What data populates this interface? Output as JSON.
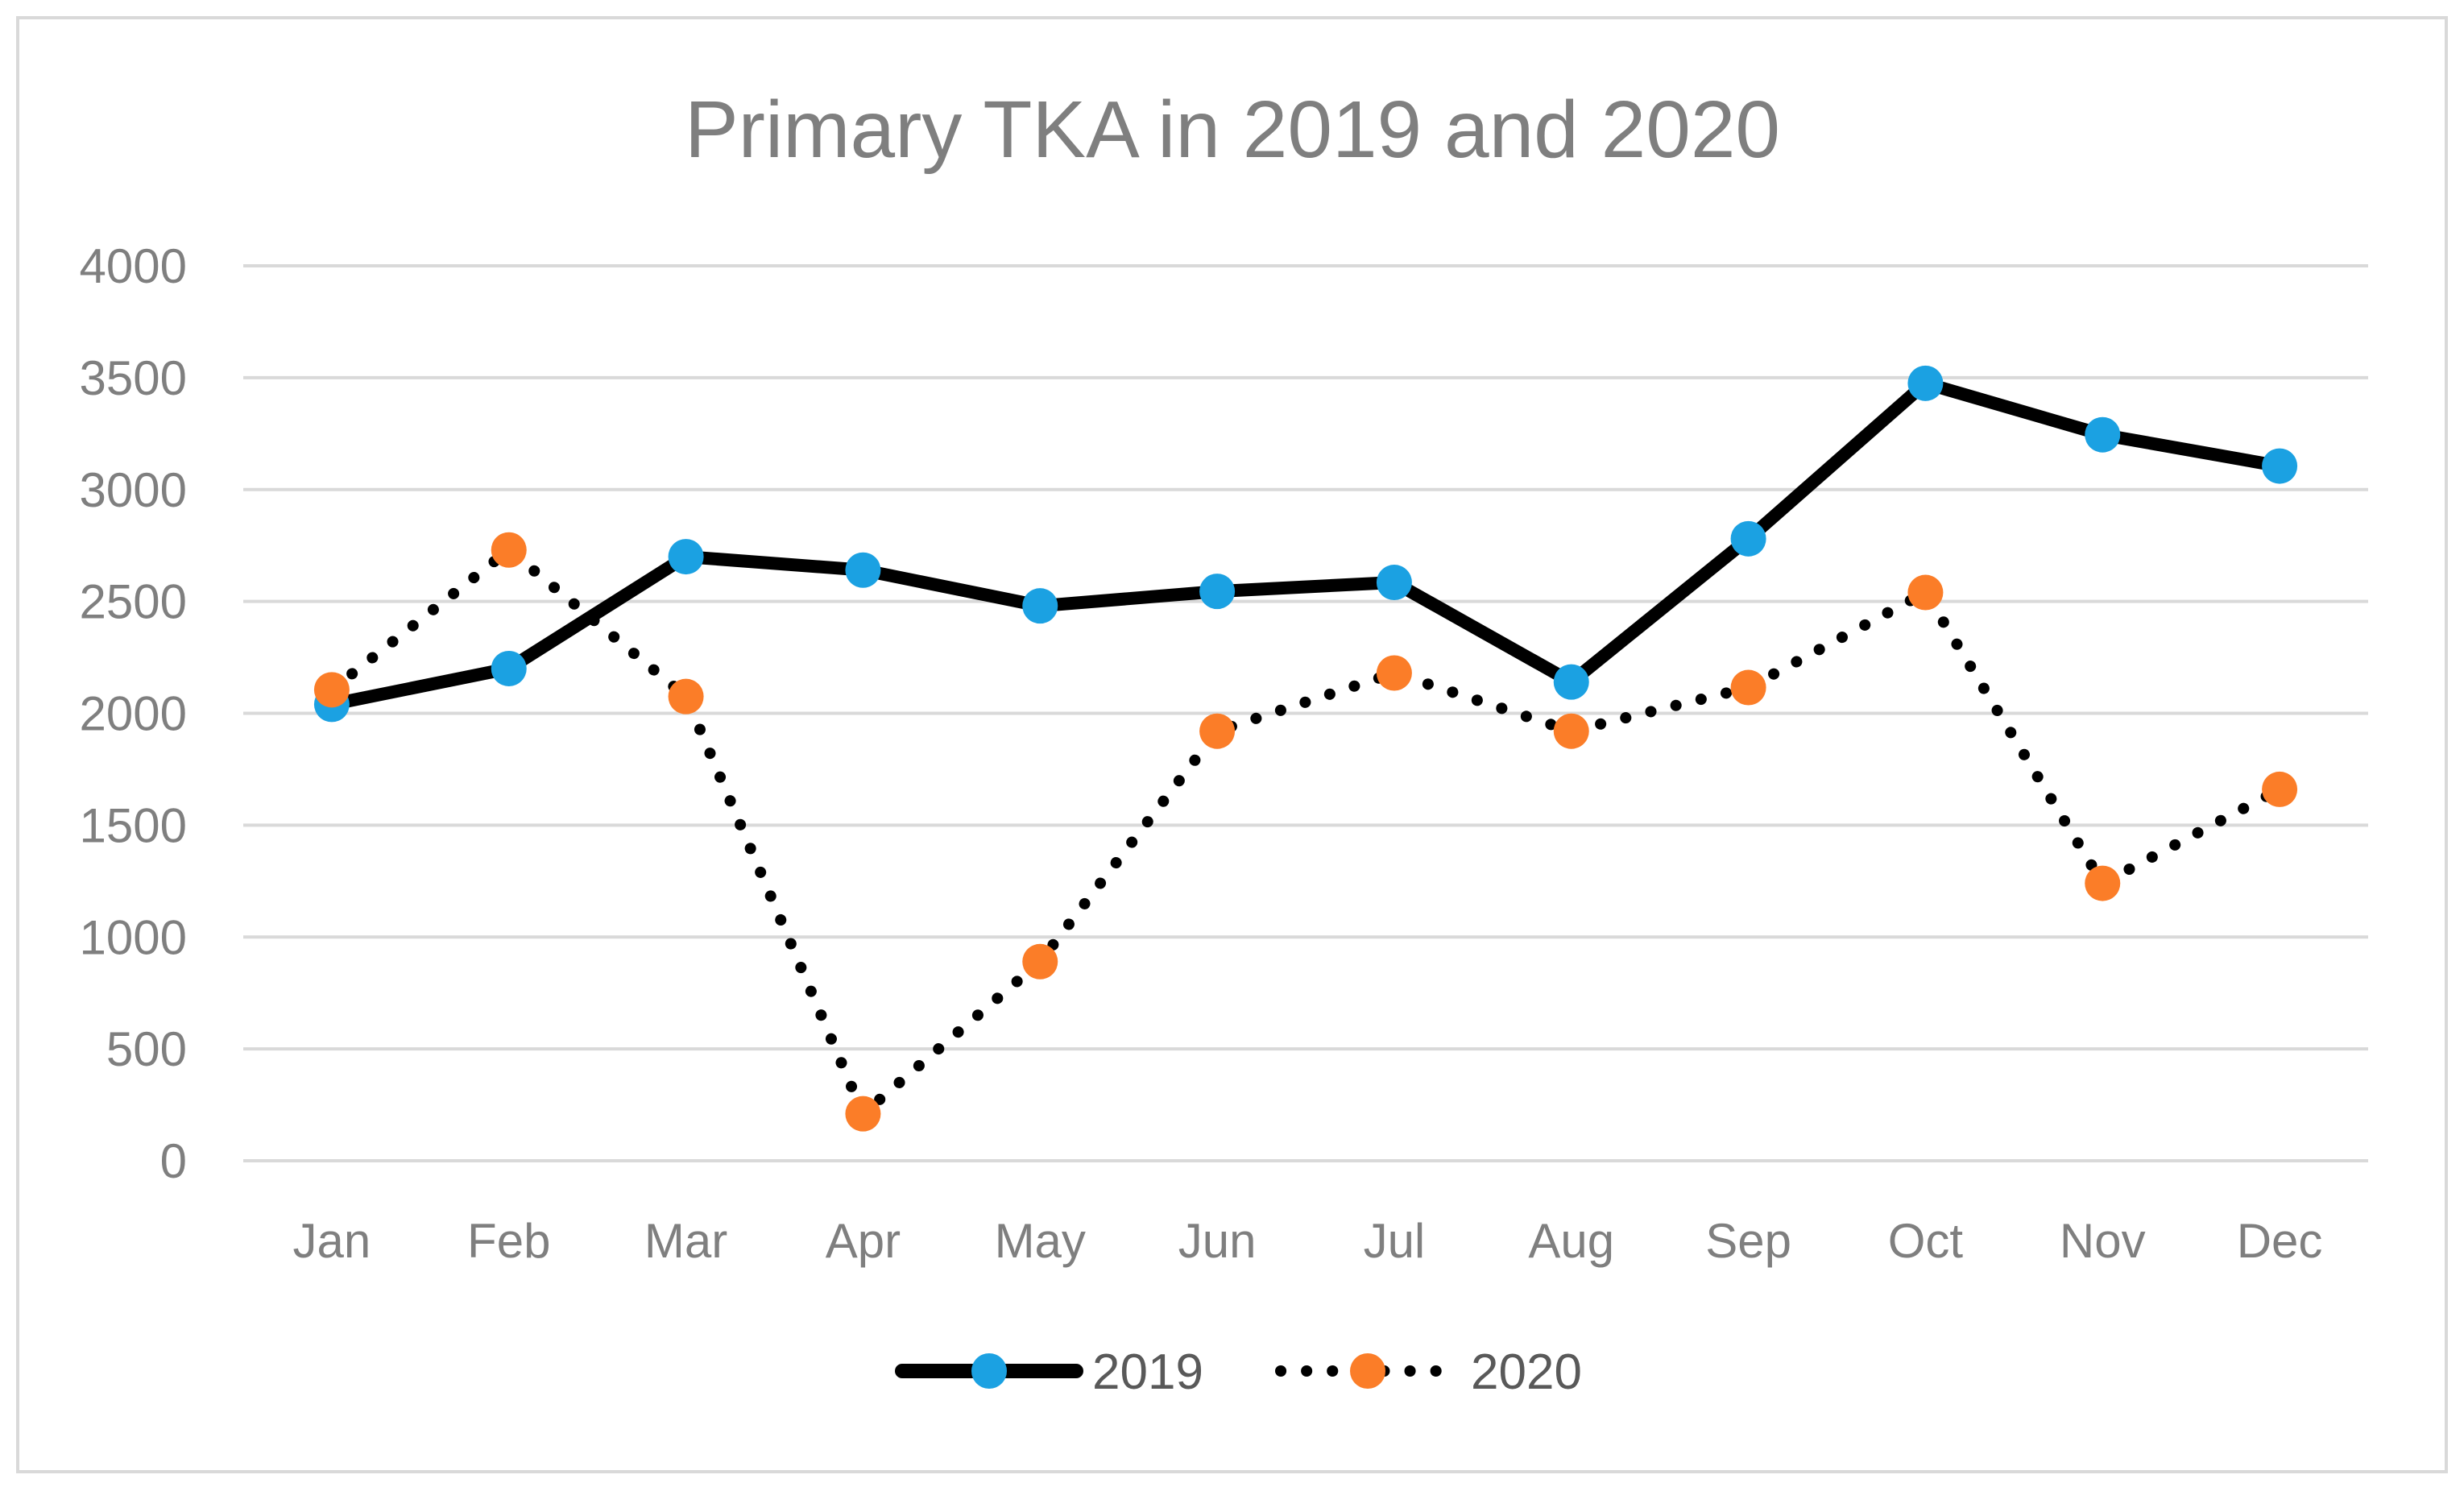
{
  "chart_data": {
    "type": "line",
    "title": "Primary TKA in 2019 and 2020",
    "xlabel": "",
    "ylabel": "",
    "categories": [
      "Jan",
      "Feb",
      "Mar",
      "Apr",
      "May",
      "Jun",
      "Jul",
      "Aug",
      "Sep",
      "Oct",
      "Nov",
      "Dec"
    ],
    "yticks": [
      "0",
      "500",
      "1000",
      "1500",
      "2000",
      "2500",
      "3000",
      "3500",
      "4000"
    ],
    "ylim": [
      0,
      4000
    ],
    "grid": true,
    "legend_position": "bottom",
    "series": [
      {
        "name": "2019",
        "values": [
          2040,
          2200,
          2700,
          2640,
          2480,
          2545,
          2585,
          2140,
          2780,
          3475,
          3245,
          3105
        ],
        "line_color": "#000000",
        "line_style": "solid",
        "marker_color": "#1ba1e2"
      },
      {
        "name": "2020",
        "values": [
          2105,
          2730,
          2075,
          210,
          890,
          1920,
          2180,
          1920,
          2115,
          2540,
          1240,
          1660
        ],
        "line_color": "#000000",
        "line_style": "dotted",
        "marker_color": "#fb7d28"
      }
    ]
  }
}
